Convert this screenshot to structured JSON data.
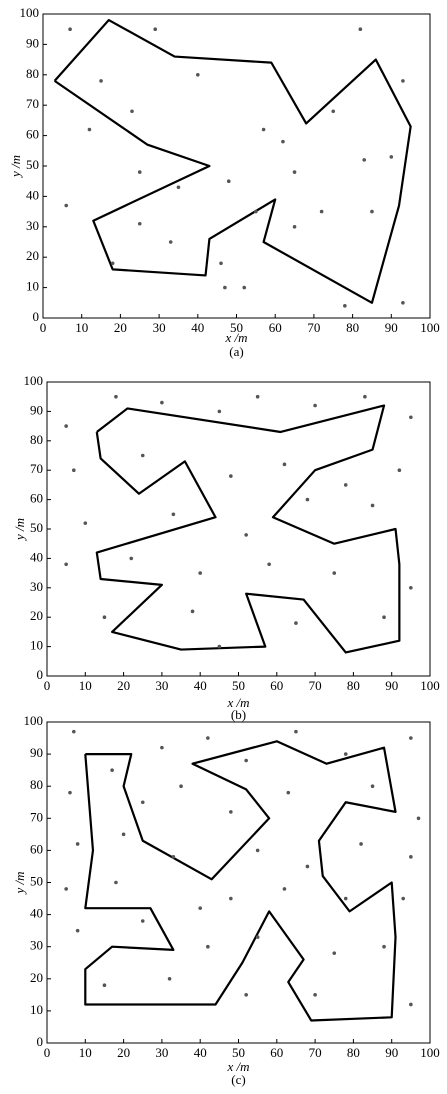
{
  "chart_data": [
    {
      "type": "line",
      "x_label": "x /m",
      "y_label": "y /m",
      "caption": "(a)",
      "xlim": [
        0,
        100
      ],
      "ylim": [
        0,
        100
      ],
      "xticks": [
        0,
        10,
        20,
        30,
        40,
        50,
        60,
        70,
        80,
        90,
        100
      ],
      "yticks": [
        0,
        10,
        20,
        30,
        40,
        50,
        60,
        70,
        80,
        90,
        100
      ],
      "series": [
        {
          "mode": "line",
          "color": "#000000",
          "x": [
            3,
            17,
            34,
            59,
            68,
            86,
            95,
            92,
            85,
            57,
            60,
            43,
            42,
            18,
            13,
            43,
            27,
            3
          ],
          "values": [
            78,
            98,
            86,
            84,
            64,
            85,
            63,
            37,
            5,
            25,
            39,
            26,
            14,
            16,
            32,
            50,
            57,
            78
          ]
        },
        {
          "mode": "markers",
          "color": "#555555",
          "x": [
            7,
            29,
            15,
            23,
            12,
            25,
            40,
            57,
            48,
            65,
            82,
            93,
            75,
            90,
            72,
            85,
            35,
            55,
            25,
            33,
            46,
            65,
            78,
            93,
            6,
            18,
            62,
            83,
            52,
            47
          ],
          "values": [
            95,
            95,
            78,
            68,
            62,
            48,
            80,
            62,
            45,
            48,
            95,
            78,
            68,
            53,
            35,
            35,
            43,
            35,
            31,
            25,
            18,
            30,
            4,
            5,
            37,
            18,
            58,
            52,
            10,
            10
          ]
        }
      ]
    },
    {
      "type": "line",
      "x_label": "x /m",
      "y_label": "y /m",
      "caption": "(b)",
      "xlim": [
        0,
        100
      ],
      "ylim": [
        0,
        100
      ],
      "xticks": [
        0,
        10,
        20,
        30,
        40,
        50,
        60,
        70,
        80,
        90,
        100
      ],
      "yticks": [
        0,
        10,
        20,
        30,
        40,
        50,
        60,
        70,
        80,
        90,
        100
      ],
      "series": [
        {
          "mode": "line",
          "color": "#000000",
          "x": [
            13,
            21,
            61,
            88,
            85,
            70,
            59,
            75,
            91,
            92,
            92,
            78,
            67,
            52,
            57,
            35,
            17,
            30,
            14,
            13,
            44,
            36,
            24,
            14,
            13
          ],
          "values": [
            83,
            91,
            83,
            92,
            77,
            70,
            54,
            45,
            50,
            38,
            12,
            8,
            26,
            28,
            10,
            9,
            15,
            31,
            33,
            42,
            54,
            73,
            62,
            74,
            83
          ]
        },
        {
          "mode": "markers",
          "color": "#555555",
          "x": [
            5,
            18,
            30,
            45,
            55,
            70,
            83,
            95,
            7,
            25,
            48,
            62,
            78,
            92,
            10,
            33,
            52,
            68,
            85,
            5,
            22,
            40,
            58,
            75,
            95,
            15,
            38,
            65,
            88,
            45
          ],
          "values": [
            85,
            95,
            93,
            90,
            95,
            92,
            95,
            88,
            70,
            75,
            68,
            72,
            65,
            70,
            52,
            55,
            48,
            60,
            58,
            38,
            40,
            35,
            38,
            35,
            30,
            20,
            22,
            18,
            20,
            10
          ]
        }
      ]
    },
    {
      "type": "line",
      "x_label": "x /m",
      "y_label": "y /m",
      "caption": "(c)",
      "xlim": [
        0,
        100
      ],
      "ylim": [
        0,
        100
      ],
      "xticks": [
        0,
        10,
        20,
        30,
        40,
        50,
        60,
        70,
        80,
        90,
        100
      ],
      "yticks": [
        0,
        10,
        20,
        30,
        40,
        50,
        60,
        70,
        80,
        90,
        100
      ],
      "series": [
        {
          "mode": "line",
          "color": "#000000",
          "x": [
            10,
            22,
            20,
            25,
            43,
            58,
            52,
            38,
            60,
            73,
            88,
            91,
            78,
            71,
            72,
            79,
            90,
            91,
            90,
            69,
            63,
            67,
            58,
            51,
            44,
            10,
            10,
            17,
            33,
            27,
            10,
            12,
            10
          ],
          "values": [
            90,
            90,
            80,
            63,
            51,
            70,
            79,
            87,
            94,
            87,
            92,
            72,
            75,
            63,
            52,
            41,
            50,
            33,
            8,
            7,
            19,
            26,
            41,
            25,
            12,
            12,
            23,
            30,
            29,
            42,
            42,
            60,
            90
          ]
        },
        {
          "mode": "markers",
          "color": "#555555",
          "x": [
            7,
            17,
            30,
            42,
            52,
            65,
            78,
            95,
            6,
            25,
            35,
            48,
            63,
            85,
            97,
            8,
            20,
            33,
            55,
            68,
            82,
            95,
            5,
            18,
            40,
            48,
            62,
            78,
            93,
            8,
            25,
            42,
            55,
            75,
            88,
            15,
            32,
            52,
            70,
            95
          ],
          "values": [
            97,
            85,
            92,
            95,
            88,
            97,
            90,
            95,
            78,
            75,
            80,
            72,
            78,
            80,
            70,
            62,
            65,
            58,
            60,
            55,
            62,
            58,
            48,
            50,
            42,
            45,
            48,
            45,
            45,
            35,
            38,
            30,
            33,
            28,
            30,
            18,
            20,
            15,
            15,
            12
          ]
        }
      ]
    }
  ]
}
